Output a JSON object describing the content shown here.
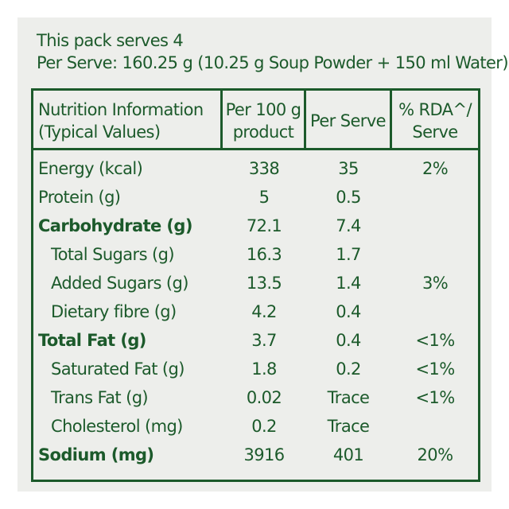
{
  "intro": {
    "line1": "This pack serves 4",
    "line2": "Per Serve: 160.25 g (10.25 g Soup Powder + 150 ml Water)"
  },
  "table": {
    "headers": {
      "col0_line1": "Nutrition Information",
      "col0_line2": "(Typical Values)",
      "col1_line1": "Per 100 g",
      "col1_line2": "product",
      "col2": "Per Serve",
      "col3_line1": "% RDA^/",
      "col3_line2": "Serve"
    },
    "rows": [
      {
        "label": "Energy (kcal)",
        "per100g": "338",
        "perServe": "35",
        "rda": "2%"
      },
      {
        "label": "Protein (g)",
        "per100g": "5",
        "perServe": "0.5",
        "rda": ""
      },
      {
        "label": "Carbohydrate (g)",
        "per100g": "72.1",
        "perServe": "7.4",
        "rda": ""
      },
      {
        "label": "Total Sugars (g)",
        "per100g": "16.3",
        "perServe": "1.7",
        "rda": ""
      },
      {
        "label": "Added Sugars (g)",
        "per100g": "13.5",
        "perServe": "1.4",
        "rda": "3%"
      },
      {
        "label": "Dietary fibre (g)",
        "per100g": "4.2",
        "perServe": "0.4",
        "rda": ""
      },
      {
        "label": "Total Fat (g)",
        "per100g": "3.7",
        "perServe": "0.4",
        "rda": "<1%"
      },
      {
        "label": "Saturated Fat (g)",
        "per100g": "1.8",
        "perServe": "0.2",
        "rda": "<1%"
      },
      {
        "label": "Trans Fat (g)",
        "per100g": "0.02",
        "perServe": "Trace",
        "rda": "<1%"
      },
      {
        "label": "Cholesterol (mg)",
        "per100g": "0.2",
        "perServe": "Trace",
        "rda": ""
      },
      {
        "label": "Sodium (mg)",
        "per100g": "3916",
        "perServe": "401",
        "rda": "20%"
      }
    ]
  }
}
